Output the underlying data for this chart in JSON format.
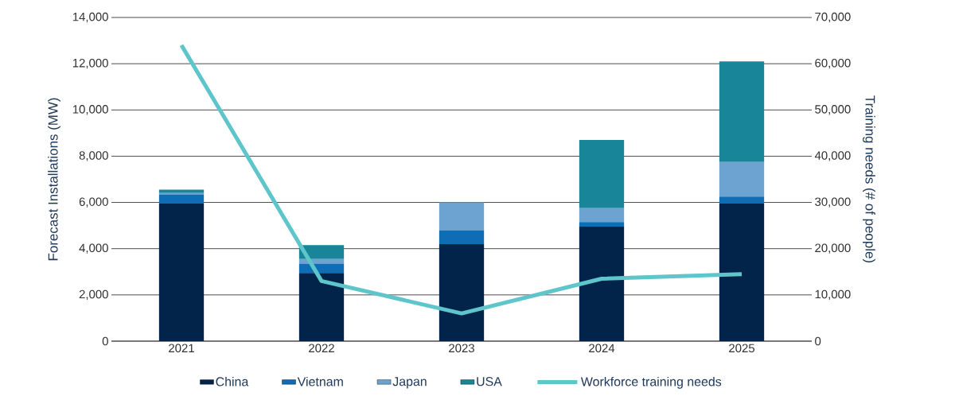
{
  "chart_data": {
    "type": "bar",
    "stacked": true,
    "xlabel": null,
    "ylabel": "Forecast Installations (MW)",
    "y2label": "Training needs (# of people)",
    "categories": [
      "2021",
      "2022",
      "2023",
      "2024",
      "2025"
    ],
    "series": [
      {
        "name": "China",
        "color": "#02244a",
        "values": [
          5950,
          2950,
          4200,
          4950,
          5950
        ]
      },
      {
        "name": "Vietnam",
        "color": "#0e6db5",
        "values": [
          400,
          400,
          600,
          200,
          300
        ]
      },
      {
        "name": "Japan",
        "color": "#6ca3d1",
        "values": [
          60,
          200,
          1200,
          600,
          1500
        ]
      },
      {
        "name": "USA",
        "color": "#188598",
        "values": [
          140,
          600,
          0,
          2950,
          4350
        ]
      },
      {
        "name": "Workforce training needs",
        "color": "#5ec6ca",
        "type": "line",
        "axis": "y2",
        "values": [
          64000,
          13000,
          6000,
          13500,
          14500
        ]
      }
    ],
    "ylim": [
      0,
      14000
    ],
    "yticks": [
      0,
      {
        "value": 2000,
        "label": "2,000"
      },
      {
        "value": 4000,
        "label": "4,000"
      },
      {
        "value": 6000,
        "label": "6,000"
      },
      {
        "value": 8000,
        "label": "8,000"
      },
      {
        "value": 10000,
        "label": "10,000"
      },
      {
        "value": 12000,
        "label": "12,000"
      },
      {
        "value": 14000,
        "label": "14,000"
      }
    ],
    "y2lim": [
      0,
      70000
    ],
    "y2ticks": [
      0,
      {
        "value": 10000,
        "label": "10,000"
      },
      {
        "value": 20000,
        "label": "20,000"
      },
      {
        "value": 30000,
        "label": "30,000"
      },
      {
        "value": 40000,
        "label": "40,000"
      },
      {
        "value": 50000,
        "label": "50,000"
      },
      {
        "value": 60000,
        "label": "60,000"
      },
      {
        "value": 70000,
        "label": "70,000"
      }
    ],
    "grid": "y",
    "legend": "bottom",
    "marker": "none",
    "line_style": "solid"
  }
}
